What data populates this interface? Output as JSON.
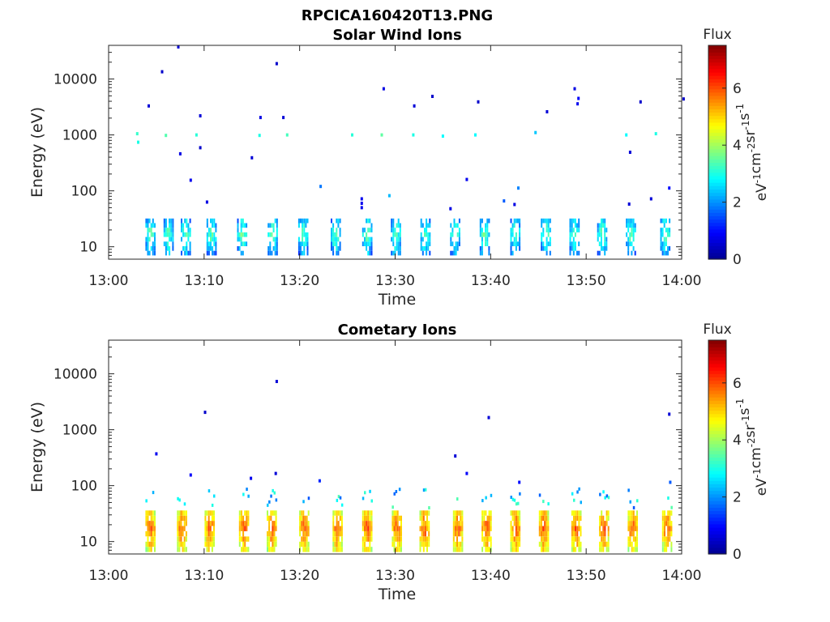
{
  "figure": {
    "filename": "RPCICA160420T13.PNG"
  },
  "colors": {
    "colormap": [
      "#00008f",
      "#0000ff",
      "#0080ff",
      "#00ffff",
      "#80ff80",
      "#ffff00",
      "#ff8000",
      "#ff0000",
      "#800000"
    ],
    "axis": "#262626"
  },
  "chart_data": [
    {
      "type": "heatmap",
      "title": "Solar Wind Ions",
      "xlabel": "Time",
      "ylabel": "Energy (eV)",
      "xticks": [
        "13:00",
        "13:10",
        "13:20",
        "13:30",
        "13:40",
        "13:50",
        "14:00"
      ],
      "xlim_minutes": [
        0,
        60
      ],
      "yscale": "log",
      "ylim": [
        6,
        40000
      ],
      "yticks": [
        10,
        100,
        1000,
        10000
      ],
      "ytick_labels": [
        "10",
        "100",
        "1000",
        "10000"
      ],
      "colorbar": {
        "title": "Flux",
        "units": "eV-1cm-2sr-1s-1",
        "range": [
          0,
          7.5
        ],
        "ticks": [
          "0",
          "2",
          "4",
          "6"
        ]
      },
      "bursts_minute": [
        4.3,
        6.2,
        8.0,
        10.7,
        13.9,
        17.1,
        20.3,
        23.7,
        27.0,
        30.0,
        33.1,
        36.2,
        39.3,
        42.5,
        45.7,
        48.7,
        51.6,
        54.6,
        58.2
      ],
      "burst_flux_range": [
        1,
        4
      ],
      "burst_energy_range_eV": [
        7,
        32
      ],
      "scatter": [
        {
          "t": 3.0,
          "e": 1050,
          "f": 3.2
        },
        {
          "t": 3.1,
          "e": 740,
          "f": 3.0
        },
        {
          "t": 4.2,
          "e": 3300,
          "f": 0.6
        },
        {
          "t": 5.6,
          "e": 13500,
          "f": 0.5
        },
        {
          "t": 6.0,
          "e": 980,
          "f": 3.4
        },
        {
          "t": 7.3,
          "e": 37500,
          "f": 0.6
        },
        {
          "t": 7.5,
          "e": 460,
          "f": 0.7
        },
        {
          "t": 8.6,
          "e": 155,
          "f": 0.8
        },
        {
          "t": 9.2,
          "e": 1000,
          "f": 3.1
        },
        {
          "t": 9.6,
          "e": 2200,
          "f": 0.6
        },
        {
          "t": 9.6,
          "e": 590,
          "f": 0.5
        },
        {
          "t": 10.3,
          "e": 63,
          "f": 0.7
        },
        {
          "t": 15.0,
          "e": 390,
          "f": 0.6
        },
        {
          "t": 15.8,
          "e": 980,
          "f": 3.0
        },
        {
          "t": 15.9,
          "e": 2050,
          "f": 0.7
        },
        {
          "t": 17.6,
          "e": 18800,
          "f": 0.5
        },
        {
          "t": 18.3,
          "e": 2050,
          "f": 0.6
        },
        {
          "t": 18.7,
          "e": 1000,
          "f": 3.3
        },
        {
          "t": 22.2,
          "e": 120,
          "f": 1.8
        },
        {
          "t": 25.5,
          "e": 1000,
          "f": 3.1
        },
        {
          "t": 26.5,
          "e": 72,
          "f": 0.8
        },
        {
          "t": 26.5,
          "e": 60,
          "f": 0.8
        },
        {
          "t": 26.5,
          "e": 50,
          "f": 0.8
        },
        {
          "t": 28.6,
          "e": 1000,
          "f": 3.5
        },
        {
          "t": 28.8,
          "e": 6700,
          "f": 0.7
        },
        {
          "t": 29.4,
          "e": 82,
          "f": 2.3
        },
        {
          "t": 31.9,
          "e": 1000,
          "f": 3.0
        },
        {
          "t": 32.0,
          "e": 3300,
          "f": 0.6
        },
        {
          "t": 33.9,
          "e": 4900,
          "f": 0.5
        },
        {
          "t": 35.0,
          "e": 950,
          "f": 2.8
        },
        {
          "t": 35.8,
          "e": 48,
          "f": 0.7
        },
        {
          "t": 37.5,
          "e": 160,
          "f": 0.8
        },
        {
          "t": 38.4,
          "e": 1000,
          "f": 2.8
        },
        {
          "t": 38.7,
          "e": 3900,
          "f": 0.5
        },
        {
          "t": 41.4,
          "e": 66,
          "f": 1.6
        },
        {
          "t": 42.5,
          "e": 57,
          "f": 0.7
        },
        {
          "t": 42.9,
          "e": 112,
          "f": 1.9
        },
        {
          "t": 44.7,
          "e": 1100,
          "f": 2.4
        },
        {
          "t": 45.9,
          "e": 2600,
          "f": 0.6
        },
        {
          "t": 48.8,
          "e": 6700,
          "f": 0.7
        },
        {
          "t": 49.2,
          "e": 4500,
          "f": 0.9
        },
        {
          "t": 49.1,
          "e": 3600,
          "f": 0.8
        },
        {
          "t": 54.2,
          "e": 1000,
          "f": 2.8
        },
        {
          "t": 54.6,
          "e": 490,
          "f": 0.6
        },
        {
          "t": 54.5,
          "e": 58,
          "f": 0.6
        },
        {
          "t": 55.7,
          "e": 3900,
          "f": 0.5
        },
        {
          "t": 56.8,
          "e": 72,
          "f": 0.6
        },
        {
          "t": 57.3,
          "e": 1050,
          "f": 3.0
        },
        {
          "t": 58.7,
          "e": 112,
          "f": 1.0
        },
        {
          "t": 60.2,
          "e": 4400,
          "f": 0.5
        }
      ]
    },
    {
      "type": "heatmap",
      "title": "Cometary Ions",
      "xlabel": "Time",
      "ylabel": "Energy (eV)",
      "xticks": [
        "13:00",
        "13:10",
        "13:20",
        "13:30",
        "13:40",
        "13:50",
        "14:00"
      ],
      "xlim_minutes": [
        0,
        60
      ],
      "yscale": "log",
      "ylim": [
        6,
        40000
      ],
      "yticks": [
        10,
        100,
        1000,
        10000
      ],
      "ytick_labels": [
        "10",
        "100",
        "1000",
        "10000"
      ],
      "colorbar": {
        "title": "Flux",
        "units": "eV-1cm-2sr-1s-1",
        "range": [
          0,
          7.5
        ],
        "ticks": [
          "0",
          "2",
          "4",
          "6"
        ]
      },
      "bursts_minute": [
        4.3,
        7.6,
        10.5,
        14.1,
        17.0,
        20.4,
        23.9,
        27.0,
        30.1,
        33.0,
        36.5,
        39.5,
        42.5,
        45.5,
        48.9,
        51.8,
        54.8,
        58.4
      ],
      "burst_flux_range": [
        3.5,
        6.5
      ],
      "burst_energy_range_eV": [
        6.5,
        36
      ],
      "scatter": [
        {
          "t": 5.0,
          "e": 370,
          "f": 0.8
        },
        {
          "t": 8.6,
          "e": 155,
          "f": 0.9
        },
        {
          "t": 10.1,
          "e": 2050,
          "f": 0.5
        },
        {
          "t": 14.9,
          "e": 135,
          "f": 0.8
        },
        {
          "t": 17.5,
          "e": 165,
          "f": 0.6
        },
        {
          "t": 17.6,
          "e": 7300,
          "f": 0.6
        },
        {
          "t": 22.1,
          "e": 122,
          "f": 1.2
        },
        {
          "t": 36.3,
          "e": 340,
          "f": 0.6
        },
        {
          "t": 37.5,
          "e": 165,
          "f": 0.9
        },
        {
          "t": 39.8,
          "e": 1650,
          "f": 0.6
        },
        {
          "t": 43.0,
          "e": 115,
          "f": 1.0
        },
        {
          "t": 58.7,
          "e": 1900,
          "f": 0.6
        },
        {
          "t": 58.8,
          "e": 115,
          "f": 1.6
        }
      ]
    }
  ]
}
